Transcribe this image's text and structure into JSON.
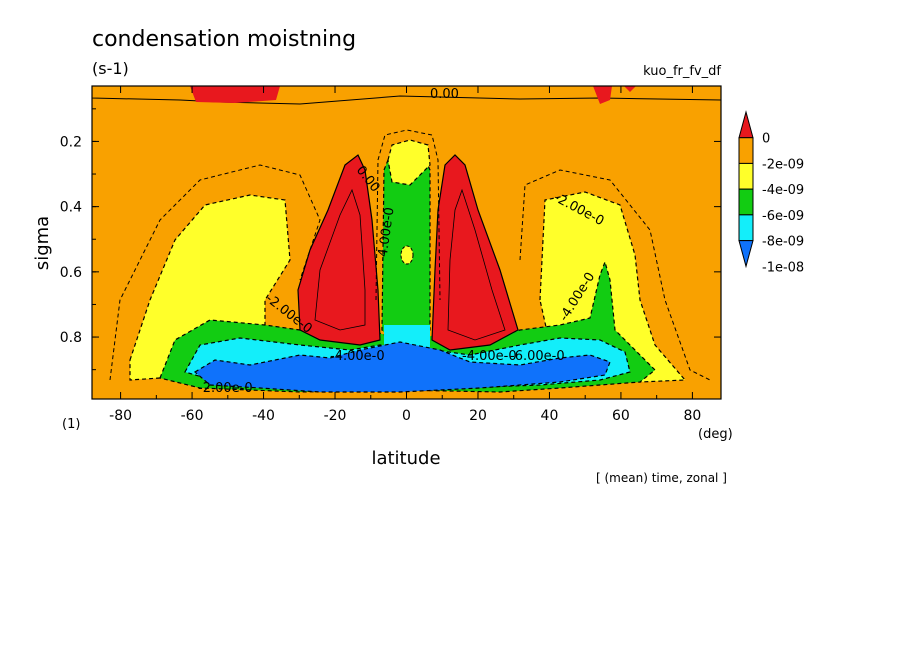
{
  "chart_data": {
    "type": "heatmap",
    "title": "condensation moistning",
    "units": "(s-1)",
    "dataset_label": "kuo_fr_fv_df",
    "note": "[ (mean) time, zonal ]",
    "xlabel": "latitude",
    "x_unit": "(deg)",
    "ylabel": "sigma",
    "y_unit": "(1)",
    "xlim": [
      -88,
      88
    ],
    "ylim": [
      0.03,
      0.99
    ],
    "y_inverted": true,
    "x_ticks": [
      "-80",
      "-60",
      "-40",
      "-20",
      "0",
      "20",
      "40",
      "60",
      "80"
    ],
    "y_ticks": [
      "0.2",
      "0.4",
      "0.6",
      "0.8"
    ],
    "colorbar": {
      "labels": [
        "0",
        "-2e-09",
        "-4e-09",
        "-6e-09",
        "-8e-09",
        "-1e-08"
      ],
      "colors": [
        "#e8181e",
        "#f9a100",
        "#ffff2a",
        "#12cc12",
        "#13eefa",
        "#0f72fb"
      ]
    },
    "contour_labels": [
      "0.00",
      "0.00",
      "-2.00e-0",
      "-2.00e-0",
      "-4.00e-0",
      "-4.00e-0",
      "-4.00e-0",
      "-2.00e-0",
      "-4.00e-0",
      "-6.00e-0"
    ]
  }
}
